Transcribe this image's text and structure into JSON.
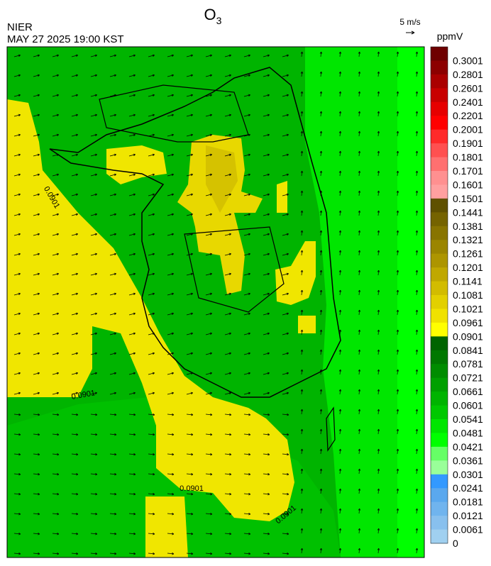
{
  "header": {
    "title": "O",
    "title_sub": "3",
    "agency": "NIER",
    "datetime": "MAY 27 2025 19:00 KST"
  },
  "wind_scale": {
    "label": "5 m/s"
  },
  "colorbar": {
    "unit": "ppmV",
    "levels": [
      {
        "value": 0.3001,
        "color": "#6e0000"
      },
      {
        "value": 0.2801,
        "color": "#8c0000"
      },
      {
        "value": 0.2601,
        "color": "#aa0000"
      },
      {
        "value": 0.2401,
        "color": "#c80000"
      },
      {
        "value": 0.2201,
        "color": "#e60000"
      },
      {
        "value": 0.2001,
        "color": "#ff0000"
      },
      {
        "value": 0.1901,
        "color": "#ff2a2a"
      },
      {
        "value": 0.1801,
        "color": "#ff5050"
      },
      {
        "value": 0.1701,
        "color": "#ff7070"
      },
      {
        "value": 0.1601,
        "color": "#ff9090"
      },
      {
        "value": 0.1501,
        "color": "#ffa0a0"
      },
      {
        "value": 0.1441,
        "color": "#5f5000"
      },
      {
        "value": 0.1381,
        "color": "#756300"
      },
      {
        "value": 0.1321,
        "color": "#887400"
      },
      {
        "value": 0.1261,
        "color": "#9b8500"
      },
      {
        "value": 0.1201,
        "color": "#ad9500"
      },
      {
        "value": 0.1141,
        "color": "#c0a800"
      },
      {
        "value": 0.1081,
        "color": "#d2bc00"
      },
      {
        "value": 0.1021,
        "color": "#e2d000"
      },
      {
        "value": 0.0961,
        "color": "#f0e200"
      },
      {
        "value": 0.0901,
        "color": "#ffff00"
      },
      {
        "value": 0.0841,
        "color": "#006400"
      },
      {
        "value": 0.0781,
        "color": "#007800"
      },
      {
        "value": 0.0721,
        "color": "#008c00"
      },
      {
        "value": 0.0661,
        "color": "#00a000"
      },
      {
        "value": 0.0601,
        "color": "#00b400"
      },
      {
        "value": 0.0541,
        "color": "#00c800"
      },
      {
        "value": 0.0481,
        "color": "#00e600"
      },
      {
        "value": 0.0421,
        "color": "#00ff00"
      },
      {
        "value": 0.0361,
        "color": "#66ff66"
      },
      {
        "value": 0.0301,
        "color": "#99ff99"
      },
      {
        "value": 0.0241,
        "color": "#3399ff"
      },
      {
        "value": 0.0181,
        "color": "#5aa8ee"
      },
      {
        "value": 0.0121,
        "color": "#70b4ee"
      },
      {
        "value": 0.0061,
        "color": "#88c0ee"
      },
      {
        "value": 0,
        "color": "#a0d0f0"
      }
    ]
  },
  "contour_labels": [
    0.0901,
    0.0901,
    0.0901,
    0.0901
  ]
}
